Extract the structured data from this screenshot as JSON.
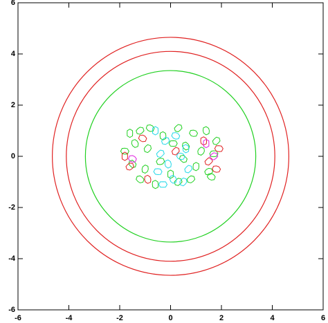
{
  "chart_data": {
    "type": "contour",
    "xlim": [
      -6,
      6
    ],
    "ylim": [
      -6,
      6
    ],
    "xticks": [
      -6,
      -4,
      -2,
      0,
      2,
      4,
      6
    ],
    "yticks": [
      -6,
      -4,
      -2,
      0,
      2,
      4,
      6
    ],
    "contours": [
      {
        "color": "#e02020",
        "radius": 4.65
      },
      {
        "color": "#e02020",
        "radius": 4.1
      },
      {
        "color": "#20d020",
        "radius": 3.35
      }
    ],
    "series": [
      {
        "color": "#20d020",
        "x": [
          -1.6,
          -1.2,
          -0.8,
          -0.3,
          0.3,
          0.9,
          1.4,
          1.8,
          -1.8,
          -1.4,
          -0.9,
          0.1,
          0.6,
          1.2,
          1.7,
          -1.5,
          -1.0,
          -0.4,
          0.5,
          1.0,
          1.5,
          -1.2,
          0.0,
          0.8,
          1.6,
          -0.6,
          0.3
        ],
        "y": [
          0.9,
          1.0,
          1.1,
          0.8,
          1.1,
          0.9,
          1.0,
          0.6,
          0.2,
          0.5,
          0.3,
          0.5,
          0.4,
          0.2,
          0.1,
          -0.3,
          -0.5,
          -0.2,
          -0.1,
          -0.4,
          -0.6,
          -0.9,
          -0.7,
          -0.9,
          -0.8,
          -1.1,
          -1.0
        ]
      },
      {
        "color": "#20d8e8",
        "x": [
          -0.6,
          -0.2,
          0.2,
          0.6,
          -0.4,
          0.4,
          -0.1,
          0.7,
          -0.5,
          0.1,
          0.5,
          -0.3
        ],
        "y": [
          1.0,
          0.6,
          0.8,
          0.3,
          0.1,
          0.0,
          -0.3,
          -0.5,
          -0.6,
          -0.9,
          -1.0,
          -1.1
        ]
      },
      {
        "color": "#e02020",
        "x": [
          -1.8,
          -1.6,
          -1.1,
          1.3,
          1.5,
          1.8,
          -0.9,
          0.2,
          1.9
        ],
        "y": [
          0.0,
          -0.4,
          0.7,
          0.6,
          -0.2,
          -0.5,
          -0.9,
          0.2,
          0.3
        ]
      },
      {
        "color": "#e020e0",
        "x": [
          1.4,
          1.7,
          -1.5
        ],
        "y": [
          0.5,
          0.0,
          -0.1
        ]
      }
    ]
  }
}
